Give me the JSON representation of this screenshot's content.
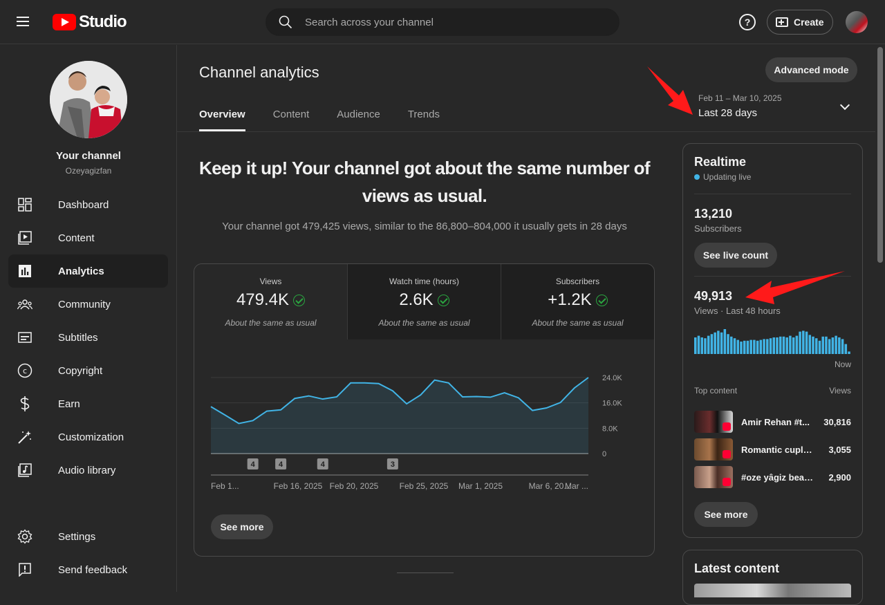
{
  "app": {
    "logo_text": "Studio",
    "search_placeholder": "Search across your channel",
    "create_label": "Create",
    "help_label": "?"
  },
  "sidebar": {
    "channel_title": "Your channel",
    "channel_handle": "Ozeyagizfan",
    "items": [
      {
        "label": "Dashboard",
        "icon": "dashboard-icon"
      },
      {
        "label": "Content",
        "icon": "content-icon"
      },
      {
        "label": "Analytics",
        "icon": "analytics-icon",
        "active": true
      },
      {
        "label": "Community",
        "icon": "community-icon"
      },
      {
        "label": "Subtitles",
        "icon": "subtitles-icon"
      },
      {
        "label": "Copyright",
        "icon": "copyright-icon"
      },
      {
        "label": "Earn",
        "icon": "earn-icon"
      },
      {
        "label": "Customization",
        "icon": "customization-icon"
      },
      {
        "label": "Audio library",
        "icon": "audio-library-icon"
      }
    ],
    "footer": [
      {
        "label": "Settings",
        "icon": "gear-icon"
      },
      {
        "label": "Send feedback",
        "icon": "feedback-icon"
      }
    ]
  },
  "page": {
    "title": "Channel analytics",
    "advanced_mode": "Advanced mode",
    "tabs": [
      "Overview",
      "Content",
      "Audience",
      "Trends"
    ],
    "date_sub": "Feb 11 – Mar 10, 2025",
    "date_value": "Last 28 days",
    "headline": "Keep it up! Your channel got about the same number of views as usual.",
    "subline": "Your channel got 479,425 views, similar to the 86,800–804,000 it usually gets in 28 days",
    "see_more": "See more"
  },
  "metrics": [
    {
      "label": "Views",
      "value": "479.4K",
      "note": "About the same as usual"
    },
    {
      "label": "Watch time (hours)",
      "value": "2.6K",
      "note": "About the same as usual"
    },
    {
      "label": "Subscribers",
      "value": "+1.2K",
      "note": "About the same as usual"
    }
  ],
  "chart_data": {
    "type": "area",
    "title": "",
    "xlabel": "",
    "ylabel": "",
    "ylim": [
      0,
      24000
    ],
    "y_ticks": [
      "24.0K",
      "16.0K",
      "8.0K",
      "0"
    ],
    "x_tick_labels": [
      "Feb 1...",
      "Feb 16, 2025",
      "Feb 20, 2025",
      "Feb 25, 2025",
      "Mar 1, 2025",
      "Mar 6, 20...",
      "Mar ..."
    ],
    "x": [
      "Feb 11",
      "Feb 12",
      "Feb 13",
      "Feb 14",
      "Feb 15",
      "Feb 16",
      "Feb 17",
      "Feb 18",
      "Feb 19",
      "Feb 20",
      "Feb 21",
      "Feb 22",
      "Feb 23",
      "Feb 24",
      "Feb 25",
      "Feb 26",
      "Feb 27",
      "Feb 28",
      "Mar 1",
      "Mar 2",
      "Mar 3",
      "Mar 4",
      "Mar 5",
      "Mar 6",
      "Mar 7",
      "Mar 8",
      "Mar 9",
      "Mar 10"
    ],
    "series": [
      {
        "values": [
          14800,
          12200,
          9500,
          10400,
          13400,
          13800,
          17400,
          18200,
          17200,
          17900,
          22300,
          22300,
          22100,
          19800,
          15700,
          18500,
          23200,
          22300,
          17900,
          18000,
          17800,
          19200,
          17600,
          13600,
          14400,
          16100,
          20700,
          24000
        ]
      }
    ],
    "markers": [
      {
        "x": "Feb 14",
        "label": "4"
      },
      {
        "x": "Feb 16",
        "label": "4"
      },
      {
        "x": "Feb 19",
        "label": "4"
      },
      {
        "x": "Feb 24",
        "label": "3"
      }
    ],
    "grid": true,
    "line_color": "#41b4e6"
  },
  "realtime": {
    "title": "Realtime",
    "status": "Updating live",
    "subscribers": "13,210",
    "subscribers_caption": "Subscribers",
    "see_live_count": "See live count",
    "views": "49,913",
    "views_caption": "Views · Last 48 hours",
    "now_label": "Now",
    "bars": [
      {
        "type": "bar",
        "values": [
          20,
          22,
          20,
          19,
          22,
          24,
          26,
          28,
          26,
          30,
          24,
          21,
          19,
          17,
          15,
          16,
          16,
          17,
          17,
          16,
          17,
          18,
          18,
          19,
          20,
          20,
          21,
          21,
          20,
          22,
          20,
          22,
          27,
          28,
          27,
          23,
          21,
          19,
          16,
          21,
          21,
          18,
          20,
          22,
          20,
          18,
          12,
          3
        ]
      }
    ],
    "top_content_label": "Top content",
    "views_label": "Views",
    "top_content": [
      {
        "title": "Amir Rehan #t...",
        "views": "30,816"
      },
      {
        "title": "Romantic cuple ...",
        "views": "3,055"
      },
      {
        "title": "#oze yâgiz beau...",
        "views": "2,900"
      }
    ],
    "see_more": "See more"
  },
  "latest": {
    "title": "Latest content"
  }
}
